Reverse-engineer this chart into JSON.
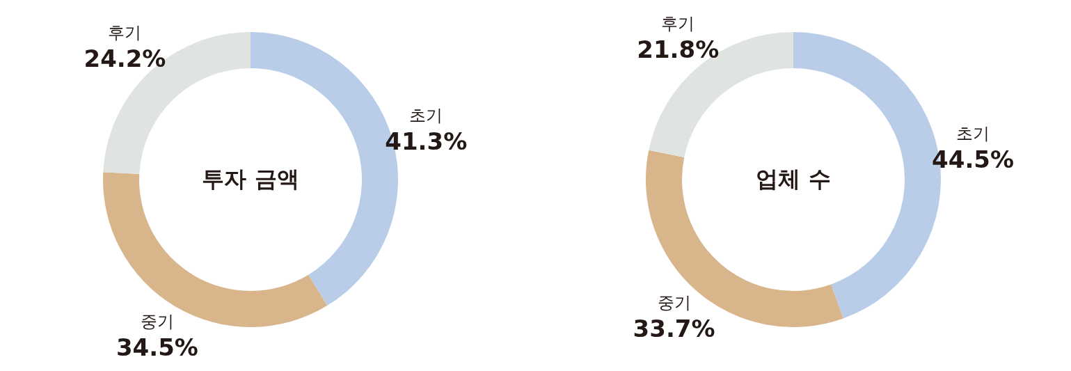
{
  "chart_data": [
    {
      "type": "donut",
      "title": "투자 금액",
      "categories": [
        "초기",
        "중기",
        "후기"
      ],
      "values": [
        41.3,
        34.5,
        24.2
      ],
      "value_labels": [
        "41.3%",
        "34.5%",
        "24.2%"
      ],
      "colors": [
        "#b9cde9",
        "#d8b58b",
        "#e0e4e0"
      ]
    },
    {
      "type": "donut",
      "title": "업체 수",
      "categories": [
        "초기",
        "중기",
        "후기"
      ],
      "values": [
        44.5,
        33.7,
        21.8
      ],
      "value_labels": [
        "44.5%",
        "33.7%",
        "21.8%"
      ],
      "colors": [
        "#b9cde9",
        "#d8b58b",
        "#e0e4e0"
      ]
    }
  ]
}
